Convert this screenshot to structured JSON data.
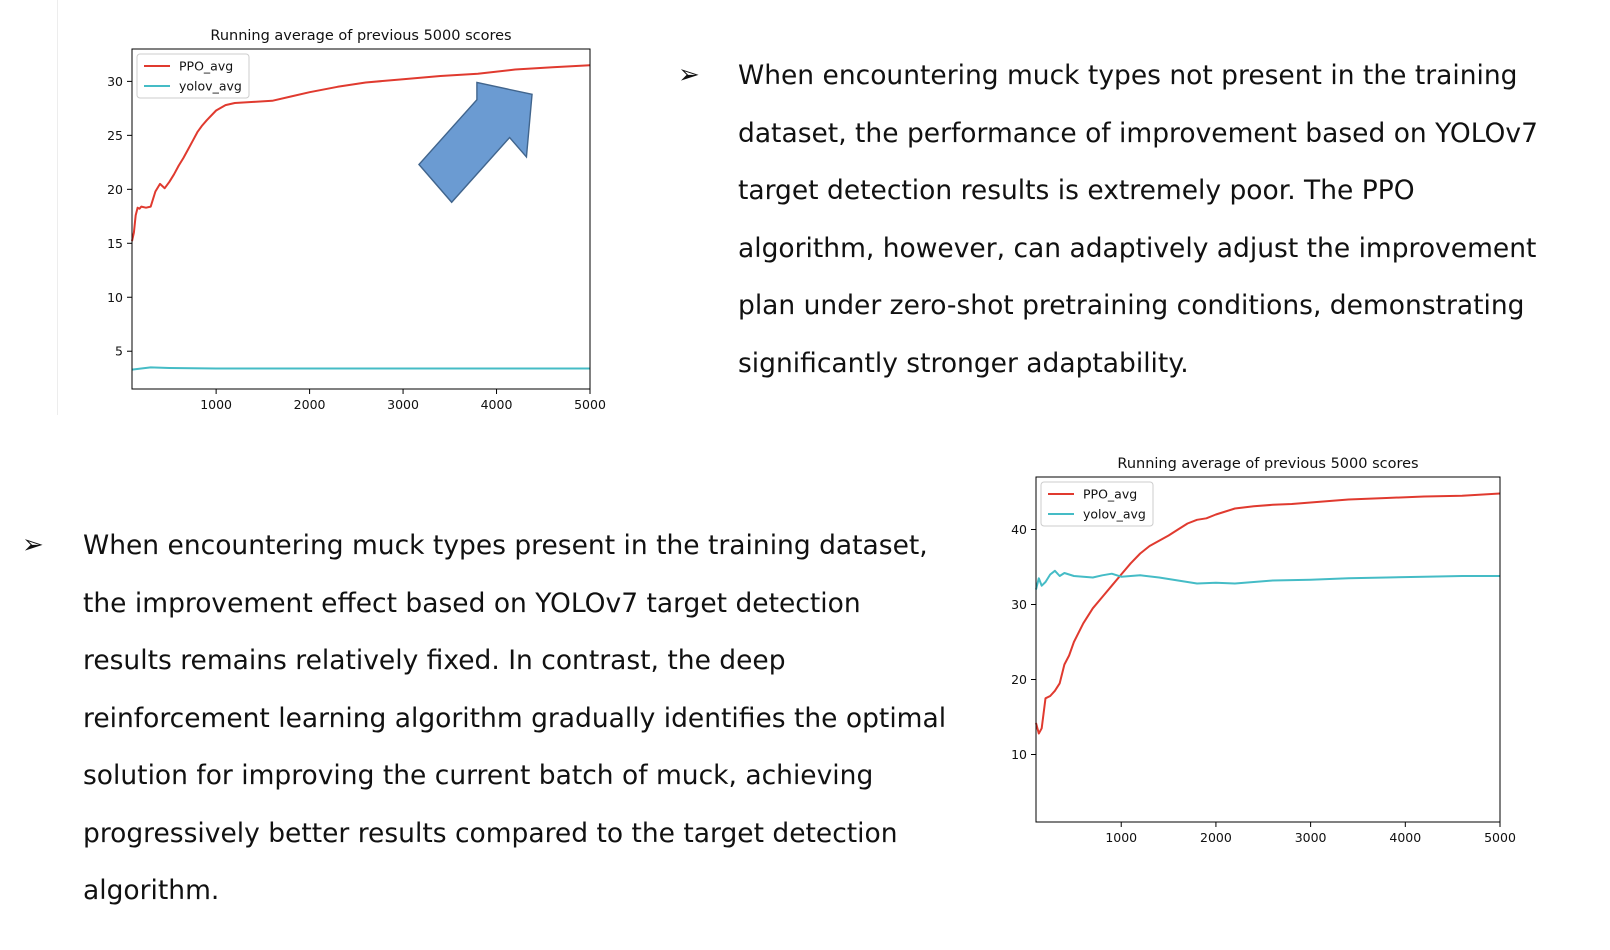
{
  "bullet_glyph": "➢",
  "slides": [
    {
      "text": "When encountering muck types not present in the training dataset, the performance of improvement based on YOLOv7 target detection results is extremely poor. The PPO algorithm, however, can adaptively adjust the improvement plan under zero-shot pretraining conditions, demonstrating significantly stronger adaptability."
    },
    {
      "text": "When encountering muck types present in the training dataset, the improvement effect based on YOLOv7 target detection results remains relatively fixed. In contrast, the deep reinforcement learning algorithm gradually identifies the optimal solution for improving the current batch of muck, achieving progressively better results compared to the target detection algorithm."
    }
  ],
  "chart_data": [
    {
      "type": "line",
      "title": "Running average of previous 5000 scores",
      "xlabel": "",
      "ylabel": "",
      "xlim": [
        100,
        5000
      ],
      "ylim": [
        1.5,
        33.0
      ],
      "xticks": [
        1000,
        2000,
        3000,
        4000,
        5000
      ],
      "yticks": [
        5,
        10,
        15,
        20,
        25,
        30
      ],
      "grid": false,
      "legend": "top-left",
      "annotation": "blue arrow pointing up-right toward the PPO_avg curve",
      "arrow_color": "#6b9bd2",
      "series": [
        {
          "name": "PPO_avg",
          "color": "#e03a2f",
          "x": [
            100,
            120,
            140,
            160,
            180,
            200,
            250,
            300,
            350,
            400,
            450,
            500,
            550,
            600,
            650,
            700,
            750,
            800,
            850,
            900,
            1000,
            1100,
            1200,
            1400,
            1600,
            1800,
            2000,
            2300,
            2600,
            3000,
            3400,
            3800,
            4200,
            4600,
            5000
          ],
          "y": [
            15.2,
            16.0,
            17.6,
            18.3,
            18.2,
            18.4,
            18.3,
            18.4,
            19.8,
            20.5,
            20.1,
            20.7,
            21.4,
            22.2,
            22.9,
            23.7,
            24.5,
            25.3,
            25.9,
            26.4,
            27.3,
            27.8,
            28.0,
            28.1,
            28.2,
            28.6,
            29.0,
            29.5,
            29.9,
            30.2,
            30.5,
            30.7,
            31.1,
            31.3,
            31.5
          ]
        },
        {
          "name": "yolov_avg",
          "color": "#45bcc6",
          "x": [
            100,
            200,
            300,
            500,
            1000,
            2000,
            3000,
            4000,
            5000
          ],
          "y": [
            3.3,
            3.4,
            3.5,
            3.45,
            3.4,
            3.4,
            3.4,
            3.4,
            3.4
          ]
        }
      ]
    },
    {
      "type": "line",
      "title": "Running average of previous 5000 scores",
      "xlabel": "",
      "ylabel": "",
      "xlim": [
        100,
        5000
      ],
      "ylim": [
        1.0,
        47.0
      ],
      "xticks": [
        1000,
        2000,
        3000,
        4000,
        5000
      ],
      "yticks": [
        10,
        20,
        30,
        40
      ],
      "grid": false,
      "legend": "top-left",
      "series": [
        {
          "name": "PPO_avg",
          "color": "#e03a2f",
          "x": [
            100,
            130,
            160,
            200,
            250,
            300,
            350,
            400,
            450,
            500,
            600,
            700,
            800,
            900,
            1000,
            1100,
            1200,
            1300,
            1400,
            1500,
            1600,
            1700,
            1800,
            1900,
            2000,
            2200,
            2400,
            2600,
            2800,
            3000,
            3400,
            3800,
            4200,
            4600,
            5000
          ],
          "y": [
            14.2,
            12.8,
            13.5,
            17.5,
            17.8,
            18.5,
            19.5,
            22.0,
            23.2,
            25.0,
            27.5,
            29.5,
            31.0,
            32.5,
            34.0,
            35.5,
            36.8,
            37.8,
            38.5,
            39.2,
            40.0,
            40.8,
            41.3,
            41.5,
            42.0,
            42.8,
            43.1,
            43.3,
            43.4,
            43.6,
            44.0,
            44.2,
            44.4,
            44.5,
            44.8
          ]
        },
        {
          "name": "yolov_avg",
          "color": "#45bcc6",
          "x": [
            100,
            130,
            160,
            200,
            250,
            300,
            350,
            400,
            500,
            600,
            700,
            800,
            900,
            1000,
            1200,
            1400,
            1600,
            1800,
            2000,
            2200,
            2400,
            2600,
            3000,
            3400,
            3800,
            4200,
            4600,
            5000
          ],
          "y": [
            32.0,
            33.5,
            32.5,
            33.0,
            34.0,
            34.5,
            33.8,
            34.2,
            33.8,
            33.7,
            33.6,
            33.9,
            34.1,
            33.7,
            33.9,
            33.6,
            33.2,
            32.8,
            32.9,
            32.8,
            33.0,
            33.2,
            33.3,
            33.5,
            33.6,
            33.7,
            33.8,
            33.8
          ]
        }
      ]
    }
  ]
}
